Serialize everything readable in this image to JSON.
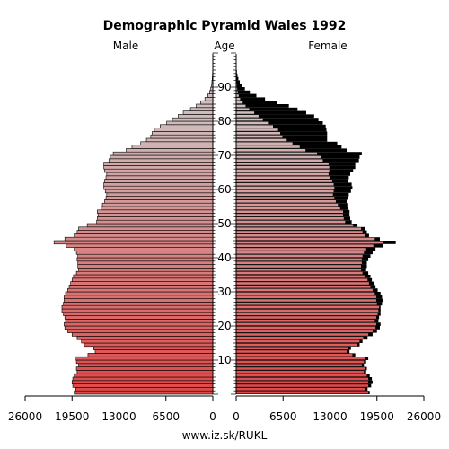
{
  "chart_data": {
    "type": "bar",
    "title": "Demographic Pyramid Wales 1992",
    "left_label": "Male",
    "center_label": "Age",
    "right_label": "Female",
    "footer": "www.iz.sk/RUKL",
    "x_ticks_left": [
      "26000",
      "19500",
      "13000",
      "6500",
      "0"
    ],
    "x_ticks_right": [
      "0",
      "6500",
      "13000",
      "19500",
      "26000"
    ],
    "x_max": 26000,
    "age_ticks": [
      "10",
      "20",
      "30",
      "40",
      "50",
      "60",
      "70",
      "80",
      "90"
    ],
    "age_max": 100,
    "series": [
      {
        "name": "Male",
        "values": [
          19200,
          19000,
          19400,
          19500,
          19400,
          19200,
          18800,
          18900,
          18600,
          18900,
          19100,
          17300,
          16300,
          16500,
          17800,
          18200,
          18800,
          19500,
          20100,
          20500,
          20600,
          20400,
          20500,
          20700,
          20900,
          20900,
          20700,
          20600,
          20600,
          20400,
          20100,
          19900,
          19700,
          19500,
          19300,
          18900,
          18600,
          18700,
          18700,
          18800,
          18700,
          18900,
          19200,
          20300,
          22000,
          20500,
          19200,
          18800,
          18600,
          17400,
          16100,
          16000,
          15900,
          16000,
          15500,
          15300,
          15000,
          14800,
          14700,
          14900,
          15100,
          15100,
          15000,
          14800,
          14700,
          15000,
          15100,
          15100,
          14400,
          14200,
          13800,
          12000,
          11200,
          10000,
          9200,
          8600,
          8400,
          8100,
          7300,
          6400,
          5600,
          4800,
          4100,
          3100,
          2300,
          1700,
          1100,
          700,
          450,
          300,
          200,
          130,
          80,
          50,
          30,
          20,
          10,
          5,
          2,
          1
        ],
        "colors": "gradient"
      },
      {
        "name": "Female",
        "values": [
          18500,
          18200,
          18700,
          18900,
          18800,
          18500,
          18000,
          18100,
          17700,
          18000,
          18300,
          16500,
          15700,
          15900,
          17100,
          17500,
          18200,
          18900,
          19500,
          19900,
          20000,
          19700,
          19800,
          20000,
          20000,
          20000,
          20200,
          20300,
          20200,
          20000,
          19600,
          19300,
          19100,
          18800,
          18600,
          18300,
          18000,
          18100,
          18100,
          18300,
          18600,
          18900,
          19300,
          20400,
          22100,
          19900,
          18400,
          18100,
          17800,
          16800,
          16000,
          15800,
          15700,
          15700,
          15500,
          15400,
          15300,
          15500,
          15600,
          15900,
          16100,
          16000,
          15500,
          15600,
          15800,
          16200,
          16500,
          16500,
          17000,
          17100,
          17400,
          15300,
          14600,
          14000,
          12600,
          12600,
          12600,
          12500,
          12400,
          12000,
          11400,
          10800,
          9700,
          8500,
          7300,
          5600,
          4000,
          2800,
          1900,
          1200,
          800,
          500,
          300,
          180,
          100,
          60,
          30,
          15,
          6,
          2
        ],
        "male_equiv": [
          18300,
          17900,
          18300,
          18300,
          18300,
          18100,
          17700,
          17800,
          17400,
          17700,
          17900,
          16100,
          15300,
          15500,
          16800,
          17100,
          17600,
          18300,
          18900,
          19300,
          19400,
          19200,
          19400,
          19600,
          19700,
          19800,
          19500,
          19400,
          19400,
          19200,
          18900,
          18600,
          18400,
          18200,
          17800,
          17500,
          17300,
          17300,
          17400,
          17400,
          17500,
          17700,
          18000,
          19000,
          20400,
          19200,
          17900,
          17500,
          17300,
          16200,
          15100,
          14900,
          14800,
          14800,
          14400,
          14100,
          13800,
          13600,
          13400,
          13500,
          13600,
          13500,
          13300,
          13000,
          12800,
          12900,
          12900,
          12800,
          12000,
          11700,
          11200,
          9600,
          8800,
          7800,
          7000,
          6400,
          6100,
          5800,
          5100,
          4400,
          3700,
          3100,
          2500,
          1800,
          1300,
          900,
          550,
          350,
          220,
          140,
          90,
          60,
          35,
          20,
          12,
          7,
          4,
          2,
          1,
          0
        ]
      }
    ]
  }
}
